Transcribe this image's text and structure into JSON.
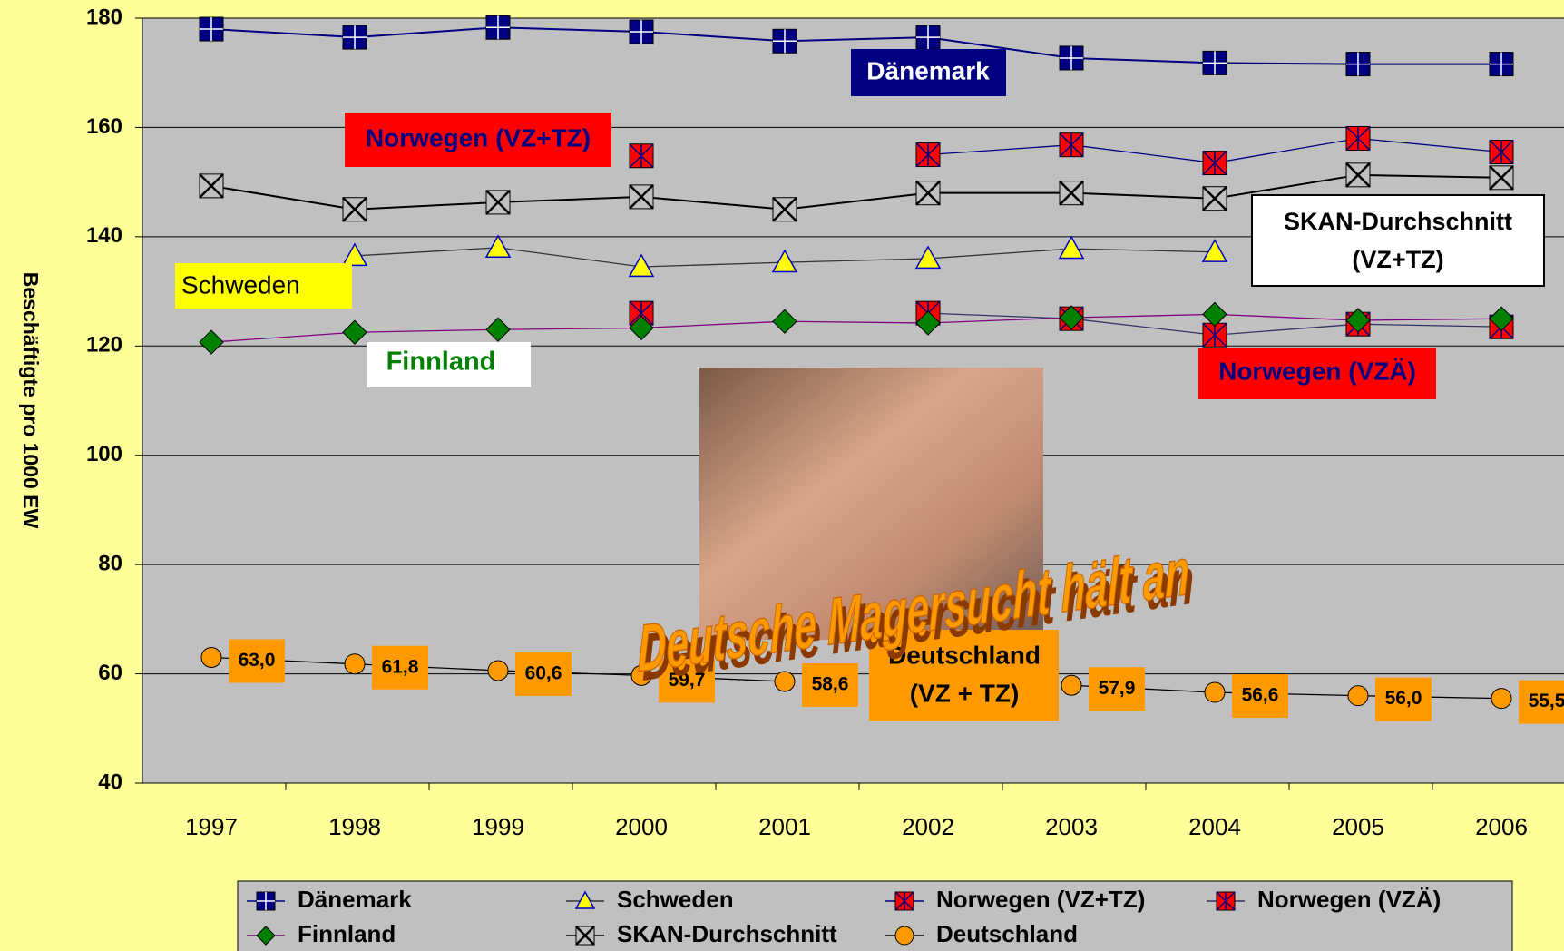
{
  "chart_data": {
    "type": "line",
    "y_label": "Beschäftigte pro 1000 EW",
    "categories": [
      "1997",
      "1998",
      "1999",
      "2000",
      "2001",
      "2002",
      "2003",
      "2004",
      "2005",
      "2006"
    ],
    "ylim": [
      40,
      180
    ],
    "yticks": [
      40,
      60,
      80,
      100,
      120,
      140,
      160,
      180
    ],
    "grid": true,
    "series": [
      {
        "name": "Dänemark",
        "color": "#000080",
        "line_color": "#000080",
        "marker": "square-plus",
        "values": [
          178,
          176.5,
          178.3,
          177.5,
          175.8,
          176.5,
          172.7,
          171.8,
          171.6,
          171.6
        ]
      },
      {
        "name": "Schweden",
        "color": "#ffff00",
        "line_color": "#333333",
        "marker": "triangle",
        "values": [
          null,
          136.5,
          138,
          134.5,
          135.3,
          136,
          137.8,
          137.2,
          null,
          null
        ]
      },
      {
        "name": "Norwegen (VZ+TZ)",
        "color": "#ff0000",
        "line_color": "#000080",
        "marker": "square-star",
        "values": [
          null,
          null,
          null,
          154.8,
          null,
          155,
          156.8,
          153.5,
          158,
          155.5
        ]
      },
      {
        "name": "Norwegen (VZÄ)",
        "color": "#ff0000",
        "line_color": "#333366",
        "marker": "square-star",
        "values": [
          null,
          null,
          null,
          126,
          null,
          126,
          125,
          122,
          124,
          123.5
        ]
      },
      {
        "name": "Finnland",
        "color": "#008000",
        "line_color": "#800080",
        "marker": "diamond",
        "values": [
          120.7,
          122.5,
          123,
          123.3,
          124.5,
          124.2,
          125.2,
          125.8,
          124.7,
          125
        ]
      },
      {
        "name": "SKAN-Durchschnitt",
        "color": "#c0c0c0",
        "line_color": "#000000",
        "marker": "square-x",
        "values": [
          149.3,
          145,
          146.3,
          147.3,
          145,
          148,
          148,
          147,
          151.3,
          150.8
        ]
      },
      {
        "name": "Deutschland",
        "color": "#ff9900",
        "line_color": "#000000",
        "marker": "circle",
        "values": [
          63.0,
          61.8,
          60.6,
          59.7,
          58.6,
          null,
          57.9,
          56.6,
          56.0,
          55.5
        ],
        "value_labels": [
          "63,0",
          "61,8",
          "60,6",
          "59,7",
          "58,6",
          null,
          "57,9",
          "56,6",
          "56,0",
          "55,5"
        ]
      }
    ],
    "annotations": [
      "Dänemark",
      "Norwegen (VZ+TZ)",
      "SKAN-Durchschnitt",
      "(VZ+TZ)",
      "Schweden",
      "Finnland",
      "Norwegen (VZÄ)",
      "Deutschland",
      "(VZ + TZ)",
      "Deutsche Magersucht hält an"
    ]
  }
}
